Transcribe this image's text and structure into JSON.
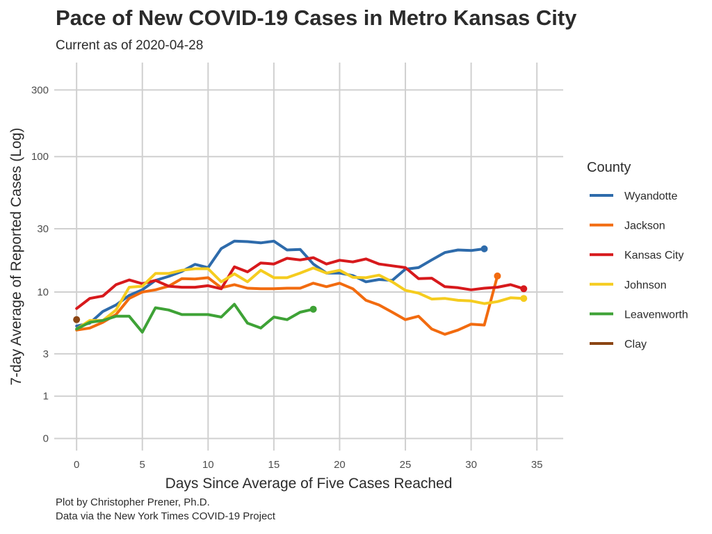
{
  "title": "Pace of New COVID-19 Cases in Metro Kansas City",
  "subtitle": "Current as of 2020-04-28",
  "caption": [
    "Plot by Christopher Prener, Ph.D.",
    "Data via the New York Times COVID-19 Project"
  ],
  "chart_data": {
    "type": "line",
    "xlabel": "Days Since Average of Five Cases Reached",
    "ylabel": "7-day Average of Reported Cases (Log)",
    "y_scale": "log",
    "xlim": [
      -1.7,
      37
    ],
    "ylim": [
      -0.18,
      470
    ],
    "x_ticks": [
      0,
      5,
      10,
      15,
      20,
      25,
      30,
      35
    ],
    "y_ticks": [
      0,
      1,
      3,
      10,
      30,
      100,
      300
    ],
    "grid": true,
    "legend": {
      "title": "County",
      "placement": "right"
    },
    "series": [
      {
        "name": "Wyandotte",
        "color": "#2E6BAB",
        "x": [
          0,
          1,
          2,
          3,
          4,
          5,
          6,
          7,
          8,
          9,
          10,
          11,
          12,
          13,
          14,
          15,
          16,
          17,
          18,
          19,
          20,
          21,
          22,
          23,
          24,
          25,
          26,
          27,
          28,
          29,
          30,
          31
        ],
        "y": [
          5.3,
          5.6,
          7.0,
          7.9,
          9.4,
          10.4,
          12.3,
          13.2,
          14.4,
          16.3,
          15.4,
          21.4,
          24.3,
          24.1,
          23.6,
          24.3,
          20.9,
          21.1,
          16.4,
          14.0,
          14.0,
          13.4,
          12.0,
          12.5,
          12.3,
          15.0,
          15.4,
          17.6,
          20.0,
          20.9,
          20.7,
          21.3
        ]
      },
      {
        "name": "Jackson",
        "color": "#F26B0F",
        "x": [
          0,
          1,
          2,
          3,
          4,
          5,
          6,
          7,
          8,
          9,
          10,
          11,
          12,
          13,
          14,
          15,
          16,
          17,
          18,
          19,
          20,
          21,
          22,
          23,
          24,
          25,
          26,
          27,
          28,
          29,
          30,
          31,
          32
        ],
        "y": [
          4.9,
          5.1,
          5.7,
          6.6,
          8.9,
          10.0,
          10.4,
          11.1,
          12.7,
          12.6,
          12.9,
          10.8,
          11.4,
          10.7,
          10.6,
          10.6,
          10.7,
          10.7,
          11.7,
          11.0,
          11.7,
          10.6,
          8.6,
          7.9,
          6.9,
          6.0,
          6.4,
          5.0,
          4.5,
          4.9,
          5.5,
          5.4,
          13.3
        ]
      },
      {
        "name": "Kansas City",
        "color": "#D7191C",
        "x": [
          0,
          1,
          2,
          3,
          4,
          5,
          6,
          7,
          8,
          9,
          10,
          11,
          12,
          13,
          14,
          15,
          16,
          17,
          18,
          19,
          20,
          21,
          22,
          23,
          24,
          25,
          26,
          27,
          28,
          29,
          30,
          31,
          32,
          33,
          34
        ],
        "y": [
          7.4,
          8.9,
          9.3,
          11.4,
          12.4,
          11.6,
          12.3,
          11.1,
          10.9,
          10.9,
          11.2,
          10.6,
          15.6,
          14.3,
          16.7,
          16.4,
          18.1,
          17.6,
          18.3,
          16.4,
          17.5,
          17.0,
          17.9,
          16.4,
          15.9,
          15.4,
          12.7,
          12.8,
          11.0,
          10.8,
          10.4,
          10.7,
          10.9,
          11.4,
          10.6
        ]
      },
      {
        "name": "Johnson",
        "color": "#F5CC1F",
        "x": [
          0,
          1,
          2,
          3,
          4,
          5,
          6,
          7,
          8,
          9,
          10,
          11,
          12,
          13,
          14,
          15,
          16,
          17,
          18,
          19,
          20,
          21,
          22,
          23,
          24,
          25,
          26,
          27,
          28,
          29,
          30,
          31,
          32,
          33,
          34
        ],
        "y": [
          5.0,
          5.9,
          5.9,
          7.2,
          10.9,
          11.1,
          13.9,
          13.9,
          14.7,
          15.1,
          15.1,
          12.0,
          13.8,
          12.0,
          14.7,
          12.9,
          12.9,
          14.0,
          15.3,
          14.0,
          14.7,
          13.0,
          12.9,
          13.5,
          12.0,
          10.3,
          9.8,
          8.8,
          8.9,
          8.6,
          8.5,
          8.1,
          8.4,
          9.0,
          8.9
        ]
      },
      {
        "name": "Leavenworth",
        "color": "#3EA236",
        "x": [
          0,
          1,
          2,
          3,
          4,
          5,
          6,
          7,
          8,
          9,
          10,
          11,
          12,
          13,
          14,
          15,
          16,
          17,
          18
        ],
        "y": [
          5.0,
          5.7,
          5.9,
          6.4,
          6.4,
          4.7,
          7.5,
          7.2,
          6.6,
          6.6,
          6.6,
          6.3,
          8.0,
          5.6,
          5.1,
          6.3,
          6.0,
          6.9,
          7.3
        ]
      },
      {
        "name": "Clay",
        "color": "#8B4513",
        "x": [
          0
        ],
        "y": [
          6.0
        ]
      }
    ]
  }
}
